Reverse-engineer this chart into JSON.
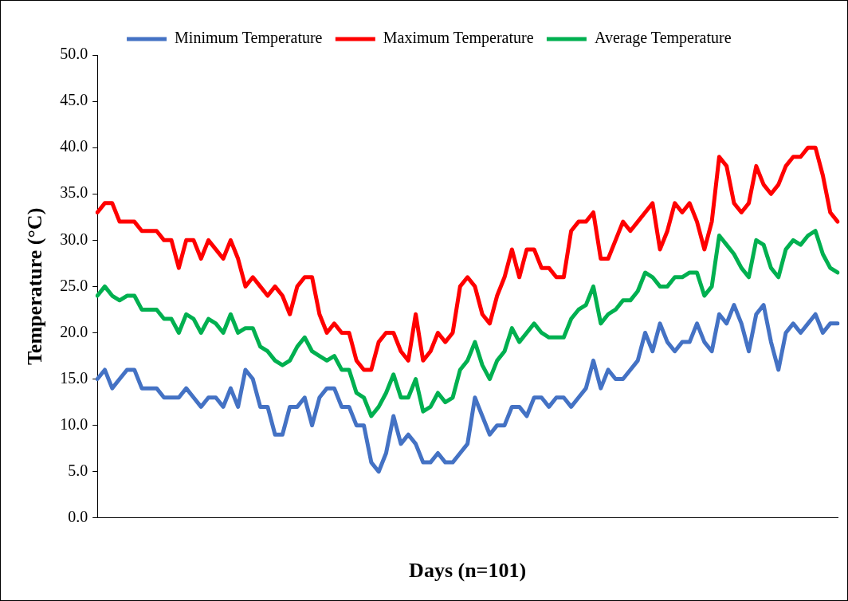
{
  "chart_data": {
    "type": "line",
    "xlabel": "Days (n=101)",
    "ylabel": "Temperature (°C)",
    "legend": "top",
    "grid": false,
    "marker": "none",
    "line_style": "solid",
    "categories": [
      null,
      null,
      null,
      null,
      null,
      null,
      null,
      null,
      null,
      null,
      null,
      null,
      null,
      null,
      null,
      null,
      null,
      null,
      null,
      null,
      null,
      null,
      null,
      null,
      null,
      null,
      null,
      null,
      null,
      null,
      null,
      null,
      null,
      null,
      null,
      null,
      null,
      null,
      null,
      null,
      null,
      null,
      null,
      null,
      null,
      null,
      null,
      null,
      null,
      null,
      null,
      null,
      null,
      null,
      null,
      null,
      null,
      null,
      null,
      null,
      null,
      null,
      null,
      null,
      null,
      null,
      null,
      null,
      null,
      null,
      null,
      null,
      null,
      null,
      null,
      null,
      null,
      null,
      null,
      null,
      null,
      null,
      null,
      null,
      null,
      null,
      null,
      null,
      null,
      null,
      null,
      null,
      null,
      null,
      null,
      null,
      null,
      null,
      null,
      null,
      null
    ],
    "ylim": [
      0,
      50
    ],
    "yticks": [
      {
        "value": 0,
        "label": "0.0"
      },
      {
        "value": 5,
        "label": "5.0"
      },
      {
        "value": 10,
        "label": "10.0"
      },
      {
        "value": 15,
        "label": "15.0"
      },
      {
        "value": 20,
        "label": "20.0"
      },
      {
        "value": 25,
        "label": "25.0"
      },
      {
        "value": 30,
        "label": "30.0"
      },
      {
        "value": 35,
        "label": "35.0"
      },
      {
        "value": 40,
        "label": "40.0"
      },
      {
        "value": 45,
        "label": "45.0"
      },
      {
        "value": 50,
        "label": "50.0"
      }
    ],
    "series": [
      {
        "name": "Minimum Temperature",
        "color": "#4472c4",
        "values": [
          15,
          16,
          14,
          15,
          16,
          16,
          14,
          14,
          14,
          13,
          13,
          13,
          14,
          13,
          12,
          13,
          13,
          12,
          14,
          12,
          16,
          15,
          12,
          12,
          9,
          9,
          12,
          12,
          13,
          10,
          13,
          14,
          14,
          12,
          12,
          10,
          10,
          6,
          5,
          7,
          11,
          8,
          9,
          8,
          6,
          6,
          7,
          6,
          6,
          7,
          8,
          13,
          11,
          9,
          10,
          10,
          12,
          12,
          11,
          13,
          13,
          12,
          13,
          13,
          12,
          13,
          14,
          17,
          14,
          16,
          15,
          15,
          16,
          17,
          20,
          18,
          21,
          19,
          18,
          19,
          19,
          21,
          19,
          18,
          22,
          21,
          23,
          21,
          18,
          22,
          23,
          19,
          16,
          20,
          21,
          20,
          21,
          22,
          20,
          21,
          21
        ]
      },
      {
        "name": "Maximum Temperature",
        "color": "#ff0000",
        "values": [
          33,
          34,
          34,
          32,
          32,
          32,
          31,
          31,
          31,
          30,
          30,
          27,
          30,
          30,
          28,
          30,
          29,
          28,
          30,
          28,
          25,
          26,
          25,
          24,
          25,
          24,
          22,
          25,
          26,
          26,
          22,
          20,
          21,
          20,
          20,
          17,
          16,
          16,
          19,
          20,
          20,
          18,
          17,
          22,
          17,
          18,
          20,
          19,
          20,
          25,
          26,
          25,
          22,
          21,
          24,
          26,
          29,
          26,
          29,
          29,
          27,
          27,
          26,
          26,
          31,
          32,
          32,
          33,
          28,
          28,
          30,
          32,
          31,
          32,
          33,
          34,
          29,
          31,
          34,
          33,
          34,
          32,
          29,
          32,
          39,
          38,
          34,
          33,
          34,
          38,
          36,
          35,
          36,
          38,
          39,
          39,
          40,
          40,
          37,
          33,
          32
        ]
      },
      {
        "name": "Average Temperature",
        "color": "#00b050",
        "values": [
          24,
          25,
          24,
          23.5,
          24,
          24,
          22.5,
          22.5,
          22.5,
          21.5,
          21.5,
          20,
          22,
          21.5,
          20,
          21.5,
          21,
          20,
          22,
          20,
          20.5,
          20.5,
          18.5,
          18,
          17,
          16.5,
          17,
          18.5,
          19.5,
          18,
          17.5,
          17,
          17.5,
          16,
          16,
          13.5,
          13,
          11,
          12,
          13.5,
          15.5,
          13,
          13,
          15,
          11.5,
          12,
          13.5,
          12.5,
          13,
          16,
          17,
          19,
          16.5,
          15,
          17,
          18,
          20.5,
          19,
          20,
          21,
          20,
          19.5,
          19.5,
          19.5,
          21.5,
          22.5,
          23,
          25,
          21,
          22,
          22.5,
          23.5,
          23.5,
          24.5,
          26.5,
          26,
          25,
          25,
          26,
          26,
          26.5,
          26.5,
          24,
          25,
          30.5,
          29.5,
          28.5,
          27,
          26,
          30,
          29.5,
          27,
          26,
          29,
          30,
          29.5,
          30.5,
          31,
          28.5,
          27,
          26.5
        ]
      }
    ]
  }
}
